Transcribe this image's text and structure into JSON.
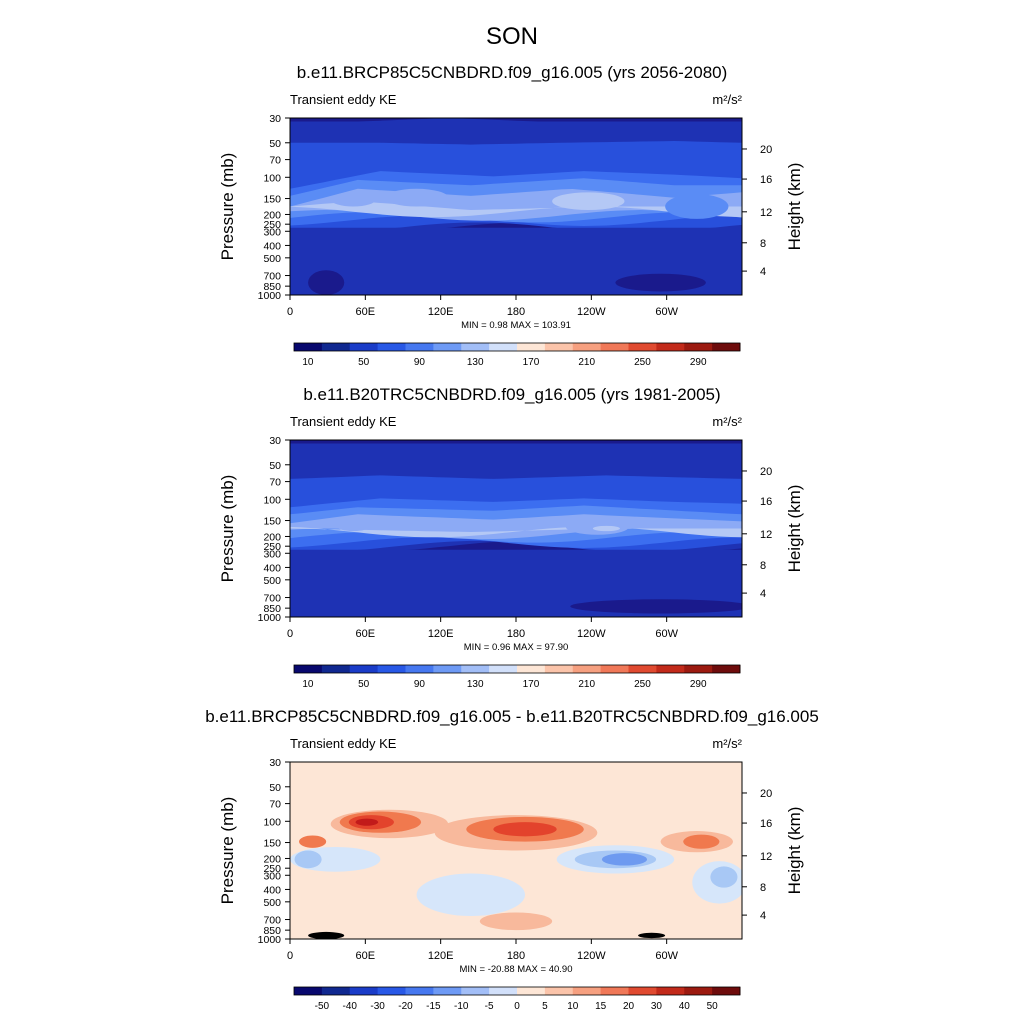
{
  "figure_title": "SON",
  "chart_data": [
    {
      "type": "heatmap",
      "title": "b.e11.BRCP85C5CNBDRD.f09_g16.005 (yrs 2056-2080)",
      "left_label": "Transient eddy KE",
      "units": "m²/s²",
      "ylabel": "Pressure (mb)",
      "y2label": "Height (km)",
      "xticks": [
        "0",
        "60E",
        "120E",
        "180",
        "120W",
        "60W"
      ],
      "yticks": [
        "30",
        "50",
        "70",
        "100",
        "150",
        "200",
        "250",
        "300",
        "400",
        "500",
        "700",
        "850",
        "1000"
      ],
      "y2ticks": [
        "20",
        "16",
        "12",
        "8",
        "4"
      ],
      "stats": "MIN =   0.98  MAX = 103.91",
      "colorbar_labels": [
        "10",
        "50",
        "90",
        "130",
        "170",
        "210",
        "250",
        "290"
      ],
      "colors": [
        "#1a1a8c",
        "#1e32b4",
        "#2850dc",
        "#3c6ef0",
        "#5a8cf5",
        "#8caaf5",
        "#b4c8f5"
      ],
      "bands": [
        {
          "level": 0,
          "profile": [
            [
              0,
              0.02
            ],
            [
              0.15,
              0.02
            ],
            [
              0.35,
              0.0
            ],
            [
              0.55,
              0.02
            ],
            [
              0.8,
              0.02
            ],
            [
              1,
              0.02
            ]
          ]
        },
        {
          "level": 1,
          "profile": [
            [
              0,
              0.14
            ],
            [
              0.2,
              0.14
            ],
            [
              0.4,
              0.15
            ],
            [
              0.6,
              0.14
            ],
            [
              0.85,
              0.13
            ],
            [
              1,
              0.14
            ]
          ]
        },
        {
          "level": 2,
          "profile": [
            [
              0,
              0.4
            ],
            [
              0.2,
              0.3
            ],
            [
              0.45,
              0.33
            ],
            [
              0.65,
              0.3
            ],
            [
              0.85,
              0.32
            ],
            [
              1,
              0.34
            ]
          ]
        },
        {
          "level": 3,
          "profile": [
            [
              0,
              0.44
            ],
            [
              0.15,
              0.35
            ],
            [
              0.4,
              0.38
            ],
            [
              0.65,
              0.34
            ],
            [
              0.85,
              0.38
            ],
            [
              1,
              0.38
            ]
          ]
        },
        {
          "level": 4,
          "profile": [
            [
              0,
              0.5
            ],
            [
              0.15,
              0.4
            ],
            [
              0.4,
              0.44
            ],
            [
              0.62,
              0.4
            ],
            [
              0.85,
              0.45
            ],
            [
              1,
              0.42
            ]
          ]
        },
        {
          "level": 5,
          "profile": [
            [
              0,
              0.5
            ],
            [
              0.15,
              0.47
            ],
            [
              0.4,
              0.52
            ],
            [
              0.7,
              0.5
            ],
            [
              1,
              0.5
            ]
          ]
        }
      ],
      "band_bottoms": [
        0.62,
        0.62,
        0.58,
        0.56,
        0.55,
        0.53
      ],
      "blobs": [
        {
          "cx": 0.14,
          "cy": 0.46,
          "rx": 0.05,
          "ry": 0.04,
          "level": 5
        },
        {
          "cx": 0.28,
          "cy": 0.45,
          "rx": 0.07,
          "ry": 0.05,
          "level": 5
        },
        {
          "cx": 0.66,
          "cy": 0.47,
          "rx": 0.08,
          "ry": 0.05,
          "level": 6
        },
        {
          "cx": 0.9,
          "cy": 0.5,
          "rx": 0.07,
          "ry": 0.07,
          "level": 4
        },
        {
          "cx": 0.82,
          "cy": 0.93,
          "rx": 0.1,
          "ry": 0.05,
          "level": 0
        },
        {
          "cx": 0.08,
          "cy": 0.93,
          "rx": 0.04,
          "ry": 0.07,
          "level": 0
        }
      ]
    },
    {
      "type": "heatmap",
      "title": "b.e11.B20TRC5CNBDRD.f09_g16.005 (yrs 1981-2005)",
      "left_label": "Transient eddy KE",
      "units": "m²/s²",
      "ylabel": "Pressure (mb)",
      "y2label": "Height (km)",
      "xticks": [
        "0",
        "60E",
        "120E",
        "180",
        "120W",
        "60W"
      ],
      "yticks": [
        "30",
        "50",
        "70",
        "100",
        "150",
        "200",
        "250",
        "300",
        "400",
        "500",
        "700",
        "850",
        "1000"
      ],
      "y2ticks": [
        "20",
        "16",
        "12",
        "8",
        "4"
      ],
      "stats": "MIN =   0.96  MAX =  97.90",
      "colorbar_labels": [
        "10",
        "50",
        "90",
        "130",
        "170",
        "210",
        "250",
        "290"
      ],
      "colors": [
        "#1a1a8c",
        "#1e32b4",
        "#2850dc",
        "#3c6ef0",
        "#5a8cf5",
        "#8caaf5",
        "#b4c8f5"
      ],
      "bands": [
        {
          "level": 0,
          "profile": [
            [
              0,
              0.02
            ],
            [
              1,
              0.02
            ]
          ]
        },
        {
          "level": 1,
          "profile": [
            [
              0,
              0.22
            ],
            [
              0.2,
              0.2
            ],
            [
              0.45,
              0.22
            ],
            [
              0.7,
              0.2
            ],
            [
              1,
              0.22
            ]
          ]
        },
        {
          "level": 2,
          "profile": [
            [
              0,
              0.38
            ],
            [
              0.2,
              0.33
            ],
            [
              0.45,
              0.35
            ],
            [
              0.65,
              0.33
            ],
            [
              0.85,
              0.35
            ],
            [
              1,
              0.36
            ]
          ]
        },
        {
          "level": 3,
          "profile": [
            [
              0,
              0.42
            ],
            [
              0.15,
              0.38
            ],
            [
              0.45,
              0.4
            ],
            [
              0.65,
              0.37
            ],
            [
              1,
              0.42
            ]
          ]
        },
        {
          "level": 4,
          "profile": [
            [
              0,
              0.47
            ],
            [
              0.15,
              0.42
            ],
            [
              0.45,
              0.45
            ],
            [
              0.65,
              0.42
            ],
            [
              1,
              0.46
            ]
          ]
        },
        {
          "level": 5,
          "profile": [
            [
              0,
              0.5
            ],
            [
              0.4,
              0.52
            ],
            [
              0.7,
              0.5
            ],
            [
              1,
              0.5
            ]
          ]
        }
      ],
      "band_bottoms": [
        0.6,
        0.6,
        0.58,
        0.55,
        0.53,
        0.52
      ],
      "blobs": [
        {
          "cx": 0.14,
          "cy": 0.48,
          "rx": 0.04,
          "ry": 0.035,
          "level": 5
        },
        {
          "cx": 0.68,
          "cy": 0.49,
          "rx": 0.07,
          "ry": 0.045,
          "level": 5
        },
        {
          "cx": 0.7,
          "cy": 0.5,
          "rx": 0.03,
          "ry": 0.015,
          "level": 6
        },
        {
          "cx": 0.82,
          "cy": 0.94,
          "rx": 0.2,
          "ry": 0.04,
          "level": 0
        }
      ]
    },
    {
      "type": "heatmap",
      "title": "b.e11.BRCP85C5CNBDRD.f09_g16.005 - b.e11.B20TRC5CNBDRD.f09_g16.005",
      "left_label": "Transient eddy KE",
      "units": "m²/s²",
      "ylabel": "Pressure (mb)",
      "y2label": "Height (km)",
      "xticks": [
        "0",
        "60E",
        "120E",
        "180",
        "120W",
        "60W"
      ],
      "yticks": [
        "30",
        "50",
        "70",
        "100",
        "150",
        "200",
        "250",
        "300",
        "400",
        "500",
        "700",
        "850",
        "1000"
      ],
      "y2ticks": [
        "20",
        "16",
        "12",
        "8",
        "4"
      ],
      "stats": "MIN = -20.88  MAX =  40.90",
      "colorbar_labels": [
        "-50",
        "-40",
        "-30",
        "-20",
        "-15",
        "-10",
        "-5",
        "0",
        "5",
        "10",
        "15",
        "20",
        "30",
        "40",
        "50"
      ],
      "background": "#fde6d6",
      "blobs": [
        {
          "cx": 0.22,
          "cy": 0.35,
          "rx": 0.13,
          "ry": 0.08,
          "color": "#f8b99c"
        },
        {
          "cx": 0.2,
          "cy": 0.34,
          "rx": 0.09,
          "ry": 0.06,
          "color": "#f0794e"
        },
        {
          "cx": 0.18,
          "cy": 0.34,
          "rx": 0.05,
          "ry": 0.04,
          "color": "#e3432c"
        },
        {
          "cx": 0.17,
          "cy": 0.34,
          "rx": 0.025,
          "ry": 0.02,
          "color": "#c21a1a"
        },
        {
          "cx": 0.05,
          "cy": 0.45,
          "rx": 0.03,
          "ry": 0.035,
          "color": "#f0794e"
        },
        {
          "cx": 0.5,
          "cy": 0.4,
          "rx": 0.18,
          "ry": 0.1,
          "color": "#f8b99c"
        },
        {
          "cx": 0.52,
          "cy": 0.38,
          "rx": 0.13,
          "ry": 0.07,
          "color": "#f0794e"
        },
        {
          "cx": 0.52,
          "cy": 0.38,
          "rx": 0.07,
          "ry": 0.04,
          "color": "#e3432c"
        },
        {
          "cx": 0.9,
          "cy": 0.45,
          "rx": 0.08,
          "ry": 0.06,
          "color": "#f8b99c"
        },
        {
          "cx": 0.91,
          "cy": 0.45,
          "rx": 0.04,
          "ry": 0.04,
          "color": "#f0794e"
        },
        {
          "cx": 0.72,
          "cy": 0.55,
          "rx": 0.13,
          "ry": 0.08,
          "color": "#d6e6fa"
        },
        {
          "cx": 0.72,
          "cy": 0.55,
          "rx": 0.09,
          "ry": 0.05,
          "color": "#a8c8f5"
        },
        {
          "cx": 0.74,
          "cy": 0.55,
          "rx": 0.05,
          "ry": 0.035,
          "color": "#6e9af0"
        },
        {
          "cx": 0.1,
          "cy": 0.55,
          "rx": 0.1,
          "ry": 0.07,
          "color": "#d6e6fa"
        },
        {
          "cx": 0.04,
          "cy": 0.55,
          "rx": 0.03,
          "ry": 0.05,
          "color": "#a8c8f5"
        },
        {
          "cx": 0.4,
          "cy": 0.75,
          "rx": 0.12,
          "ry": 0.12,
          "color": "#d6e6fa"
        },
        {
          "cx": 0.95,
          "cy": 0.68,
          "rx": 0.06,
          "ry": 0.12,
          "color": "#d6e6fa"
        },
        {
          "cx": 0.96,
          "cy": 0.65,
          "rx": 0.03,
          "ry": 0.06,
          "color": "#a8c8f5"
        },
        {
          "cx": 0.5,
          "cy": 0.9,
          "rx": 0.08,
          "ry": 0.05,
          "color": "#f8b99c"
        },
        {
          "cx": 0.08,
          "cy": 0.98,
          "rx": 0.04,
          "ry": 0.02,
          "color": "#000000"
        },
        {
          "cx": 0.8,
          "cy": 0.98,
          "rx": 0.03,
          "ry": 0.015,
          "color": "#000000"
        }
      ]
    }
  ],
  "colorbar_colors": {
    "top": [
      "#08086e",
      "#102890",
      "#1a3cc8",
      "#2858e6",
      "#4678f0",
      "#6e9af5",
      "#a2bef7",
      "#d2e0fa",
      "#fde6d6",
      "#fbc4aa",
      "#f6a080",
      "#f07858",
      "#e04a30",
      "#c22a1a",
      "#9c1a10",
      "#6e0c0c"
    ],
    "diff": [
      "#08086e",
      "#102890",
      "#1a3cc8",
      "#2858e6",
      "#4678f0",
      "#6e9af5",
      "#a2bef7",
      "#d2e0fa",
      "#fde6d6",
      "#fbc4aa",
      "#f6a080",
      "#f07858",
      "#e04a30",
      "#c22a1a",
      "#9c1a10",
      "#6e0c0c"
    ]
  }
}
